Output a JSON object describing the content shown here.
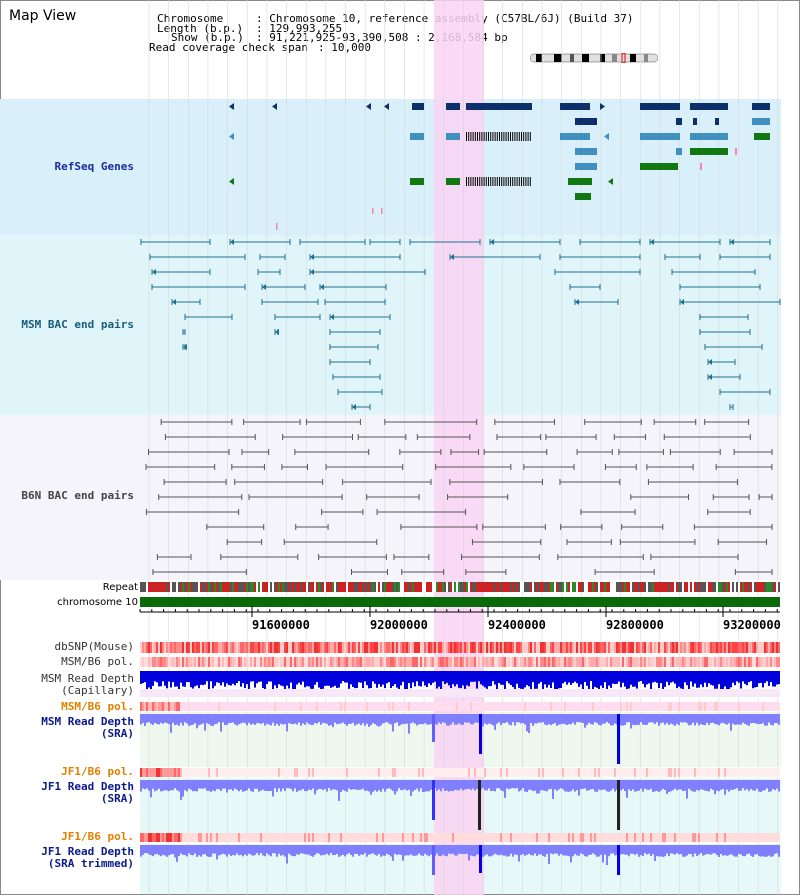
{
  "view": {
    "title": "Map View"
  },
  "info": {
    "chromosome_key": "Chromosome",
    "chromosome_val": ": Chromosome 10, reference assembly (C57BL/6J) (Build 37)",
    "length_key": "Length (b.p.)",
    "length_val": ": 129,993,255",
    "show_key": "Show (b.p.)",
    "show_val": ": 91,221,925-93,390,508 : 2,168,584 bp",
    "coverage_key": "Read coverage check span",
    "coverage_val": ": 10,000"
  },
  "tracks": {
    "refseq": "RefSeq Genes",
    "msm_bac": "MSM BAC end pairs",
    "b6n_bac": "B6N BAC end pairs",
    "repeat": "Repeat",
    "chromosome": "chromosome 10",
    "dbsnp": "dbSNP(Mouse)",
    "msm_b6_pol": "MSM/B6 pol.",
    "msm_depth_cap_1": "MSM Read Depth",
    "msm_depth_cap_2": "(Capillary)",
    "msm_b6_pol_2": "MSM/B6 pol.",
    "msm_depth_sra_1": "MSM Read Depth",
    "msm_depth_sra_2": "(SRA)",
    "jf1_b6_pol": "JF1/B6 pol.",
    "jf1_depth_sra_1": "JF1 Read Depth",
    "jf1_depth_sra_2": "(SRA)",
    "jf1_b6_pol_2": "JF1/B6 pol.",
    "jf1_depth_trim_1": "JF1 Read Depth",
    "jf1_depth_trim_2": "(SRA trimmed)"
  },
  "axis": {
    "ticks": [
      "91600000",
      "92000000",
      "92400000",
      "92800000",
      "93200000"
    ]
  },
  "colors": {
    "refseq_bg": "#d9f0fa",
    "msm_bg": "#dff5f9",
    "b6n_bg": "#f4f4fa",
    "highlight": "#f9d4f3",
    "dark_blue": "#0d2f6b",
    "mid_blue": "#3f8fbf",
    "green": "#117711",
    "depth_blue": "#8080ff",
    "depth_dark": "#0000e0",
    "pol_orange": "#e08000",
    "label_navy": "#0a1a8c"
  }
}
